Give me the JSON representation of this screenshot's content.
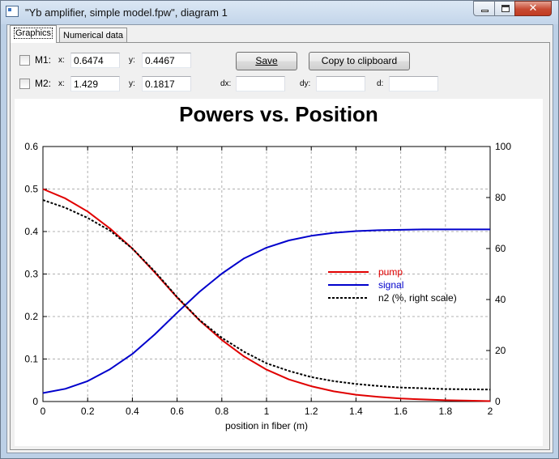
{
  "window": {
    "title": "\"Yb amplifier, simple model.fpw\", diagram 1",
    "buttons": {
      "minimize": "minimize-icon",
      "maximize": "maximize-icon",
      "close": "close-icon"
    }
  },
  "tabs": [
    {
      "label": "Graphics",
      "active": true
    },
    {
      "label": "Numerical data",
      "active": false
    }
  ],
  "markers": {
    "m1": {
      "label": "M1:",
      "x_label": "x:",
      "x_value": "0.6474",
      "y_label": "y:",
      "y_value": "0.4467",
      "checked": false
    },
    "m2": {
      "label": "M2:",
      "x_label": "x:",
      "x_value": "1.429",
      "y_label": "y:",
      "y_value": "0.1817",
      "checked": false
    },
    "dx_label": "dx:",
    "dx_value": "",
    "dy_label": "dy:",
    "dy_value": "",
    "d_label": "d:",
    "d_value": ""
  },
  "actions": {
    "save_label": "Save",
    "copy_label": "Copy to clipboard"
  },
  "chart_data": {
    "type": "line",
    "title": "Powers vs. Position",
    "xlabel": "position in fiber (m)",
    "ylabel": "",
    "y2label": "",
    "xlim": [
      0,
      2
    ],
    "ylim": [
      0,
      0.6
    ],
    "y2lim": [
      0,
      100
    ],
    "xticks": [
      "0",
      "0.2",
      "0.4",
      "0.6",
      "0.8",
      "1",
      "1.2",
      "1.4",
      "1.6",
      "1.8",
      "2"
    ],
    "yticks": [
      "0",
      "0.1",
      "0.2",
      "0.3",
      "0.4",
      "0.5",
      "0.6"
    ],
    "y2ticks": [
      "0",
      "20",
      "40",
      "60",
      "80",
      "100"
    ],
    "grid": true,
    "legend_position": "center-right",
    "series": [
      {
        "name": "pump",
        "color": "#e00000",
        "style": "solid",
        "axis": "left",
        "x": [
          0,
          0.1,
          0.2,
          0.3,
          0.4,
          0.5,
          0.6,
          0.7,
          0.8,
          0.9,
          1.0,
          1.1,
          1.2,
          1.3,
          1.4,
          1.5,
          1.6,
          1.7,
          1.8,
          1.9,
          2.0
        ],
        "values": [
          0.5,
          0.478,
          0.447,
          0.407,
          0.36,
          0.304,
          0.245,
          0.191,
          0.145,
          0.106,
          0.075,
          0.052,
          0.036,
          0.024,
          0.016,
          0.011,
          0.007,
          0.005,
          0.003,
          0.002,
          0.001
        ]
      },
      {
        "name": "signal",
        "color": "#0000cc",
        "style": "solid",
        "axis": "left",
        "x": [
          0,
          0.1,
          0.2,
          0.3,
          0.4,
          0.5,
          0.6,
          0.7,
          0.8,
          0.9,
          1.0,
          1.1,
          1.2,
          1.3,
          1.4,
          1.5,
          1.6,
          1.7,
          1.8,
          1.9,
          2.0
        ],
        "values": [
          0.02,
          0.03,
          0.048,
          0.076,
          0.112,
          0.158,
          0.209,
          0.258,
          0.301,
          0.337,
          0.362,
          0.379,
          0.39,
          0.397,
          0.401,
          0.403,
          0.404,
          0.405,
          0.405,
          0.405,
          0.405
        ]
      },
      {
        "name": "n2 (%, right scale)",
        "color": "#000000",
        "style": "dotted",
        "axis": "right",
        "x": [
          0,
          0.1,
          0.2,
          0.3,
          0.4,
          0.5,
          0.6,
          0.7,
          0.8,
          0.9,
          1.0,
          1.1,
          1.2,
          1.3,
          1.4,
          1.5,
          1.6,
          1.7,
          1.8,
          1.9,
          2.0
        ],
        "values": [
          79,
          76,
          72,
          67,
          60,
          51,
          41,
          32,
          25,
          19.5,
          15,
          12,
          9.6,
          8,
          6.9,
          6.1,
          5.5,
          5.2,
          4.9,
          4.8,
          4.7
        ]
      }
    ]
  }
}
